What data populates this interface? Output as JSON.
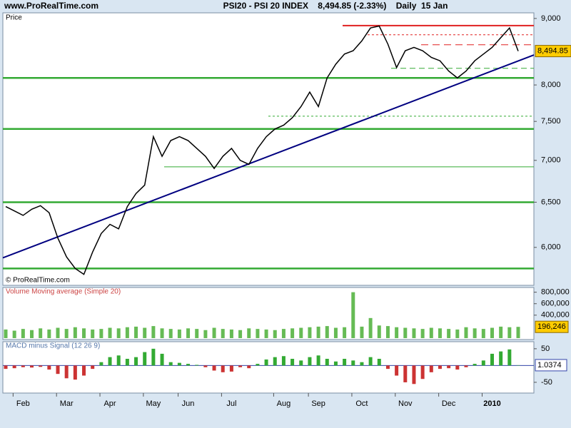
{
  "chart_data": {
    "type": "line",
    "site": "www.ProRealTime.com",
    "title": "PSI20 - PSI 20 INDEX    8,494.85 (-2.33%)    Daily  15 Jan",
    "panel_label": "Price",
    "copyright": "© ProRealTime.com",
    "categories": [
      null,
      null,
      "Feb",
      null,
      null,
      null,
      null,
      "Mar",
      null,
      null,
      null,
      null,
      "Apr",
      null,
      null,
      null,
      null,
      "May",
      null,
      null,
      null,
      "Jun",
      null,
      null,
      null,
      null,
      "Jul",
      null,
      null,
      null,
      null,
      null,
      "Aug",
      null,
      null,
      null,
      "Sep",
      null,
      null,
      null,
      null,
      "Oct",
      null,
      null,
      null,
      null,
      "Nov",
      null,
      null,
      null,
      null,
      "Dec",
      null,
      null,
      null,
      null,
      "2010",
      null,
      null,
      null
    ],
    "log_scale": true,
    "ylim": [
      5610,
      9090
    ],
    "yticks": [
      {
        "value": 6000,
        "label": "6,000"
      },
      {
        "value": 6500,
        "label": "6,500"
      },
      {
        "value": 7000,
        "label": "7,000"
      },
      {
        "value": 7500,
        "label": "7,500"
      },
      {
        "value": 8000,
        "label": "8,000"
      },
      {
        "value": 9000,
        "label": "9,000"
      }
    ],
    "last_label": {
      "value": 8494.85,
      "label": "8,494.85"
    },
    "series": [
      {
        "name": "Price",
        "color": "#000000",
        "values": [
          6450,
          6400,
          6350,
          6420,
          6460,
          6380,
          6100,
          5900,
          5780,
          5720,
          5950,
          6150,
          6250,
          6200,
          6450,
          6600,
          6700,
          7300,
          7050,
          7250,
          7300,
          7250,
          7150,
          7050,
          6900,
          7050,
          7150,
          7000,
          6950,
          7150,
          7300,
          7400,
          7450,
          7550,
          7700,
          7900,
          7700,
          8100,
          8300,
          8450,
          8500,
          8650,
          8850,
          8880,
          8600,
          8250,
          8500,
          8550,
          8500,
          8400,
          8350,
          8200,
          8100,
          8200,
          8350,
          8450,
          8550,
          8700,
          8850,
          8494.85
        ]
      }
    ],
    "levels": [
      {
        "value": 8100,
        "color": "#33aa33"
      },
      {
        "value": 7400,
        "color": "#33aa33"
      },
      {
        "value": 6500,
        "color": "#33aa33"
      },
      {
        "value": 5780,
        "color": "#33aa33"
      },
      {
        "value": 8887,
        "color": "#e02020"
      },
      {
        "value": 8744,
        "color": "#e02020"
      },
      {
        "value": 8590,
        "color": "#e02020"
      },
      {
        "value": 8240,
        "color": "#33aa33"
      },
      {
        "value": 7570,
        "color": "#33aa33"
      },
      {
        "value": 6920,
        "color": "#33aa33"
      }
    ],
    "trendline": {
      "color": "#000080",
      "values": [
        5890,
        8437
      ]
    },
    "volume": {
      "title": "Volume Moving average (Simple 20)",
      "color": "#66bb55",
      "ylim": [
        0,
        870000
      ],
      "yticks": [
        {
          "value": 400000,
          "label": "400,000"
        },
        {
          "value": 600000,
          "label": "600,000"
        },
        {
          "value": 800000,
          "label": "800,000"
        }
      ],
      "last_label": {
        "value": 196246,
        "label": "196,246"
      },
      "values": [
        150000,
        130000,
        160000,
        140000,
        170000,
        150000,
        180000,
        160000,
        190000,
        170000,
        150000,
        160000,
        180000,
        170000,
        190000,
        200000,
        180000,
        210000,
        170000,
        160000,
        150000,
        170000,
        160000,
        140000,
        180000,
        160000,
        150000,
        140000,
        170000,
        160000,
        150000,
        140000,
        160000,
        170000,
        180000,
        190000,
        200000,
        210000,
        180000,
        190000,
        800000,
        200000,
        350000,
        220000,
        210000,
        190000,
        180000,
        170000,
        160000,
        180000,
        170000,
        160000,
        150000,
        190000,
        170000,
        160000,
        180000,
        200000,
        190000,
        196246
      ]
    },
    "macd": {
      "title": "MACD minus Signal (12 26 9)",
      "up_color": "#33aa33",
      "down_color": "#cc3333",
      "ylim": [
        -82,
        71
      ],
      "yticks": [
        -50,
        50
      ],
      "last_label": {
        "value": 1.0374,
        "label": "1.0374"
      },
      "values": [
        -10,
        -8,
        -5,
        -6,
        -4,
        -12,
        -25,
        -38,
        -42,
        -30,
        -10,
        10,
        25,
        30,
        20,
        25,
        40,
        50,
        35,
        10,
        8,
        5,
        2,
        -5,
        -15,
        -20,
        -18,
        -5,
        -8,
        5,
        18,
        25,
        28,
        20,
        15,
        25,
        30,
        20,
        12,
        20,
        15,
        10,
        25,
        20,
        -10,
        -30,
        -50,
        -55,
        -40,
        -20,
        -10,
        -8,
        -12,
        -5,
        5,
        15,
        35,
        42,
        48,
        1.0374
      ]
    }
  }
}
